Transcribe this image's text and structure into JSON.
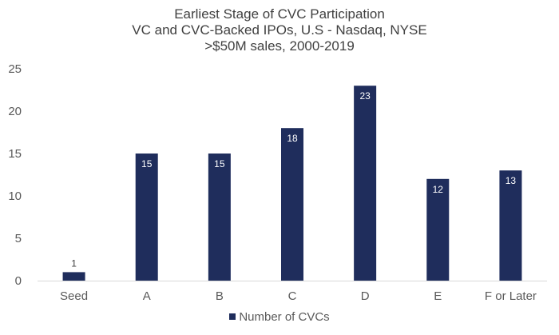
{
  "colors": {
    "bar": "#1f2d5c",
    "axis": "#d9d9d9",
    "text": "#595959",
    "title": "#404040"
  },
  "chart_data": {
    "type": "bar",
    "title": [
      "Earliest Stage of CVC Participation",
      "VC and CVC-Backed IPOs, U.S - Nasdaq, NYSE",
      ">$50M sales, 2000-2019"
    ],
    "categories": [
      "Seed",
      "A",
      "B",
      "C",
      "D",
      "E",
      "F or Later"
    ],
    "series": [
      {
        "name": "Number of CVCs",
        "values": [
          1,
          15,
          15,
          18,
          23,
          12,
          13
        ]
      }
    ],
    "data_labels": [
      "1",
      "15",
      "15",
      "18",
      "23",
      "12",
      "13"
    ],
    "yticks": [
      "0",
      "5",
      "10",
      "15",
      "20",
      "25"
    ],
    "ylim": [
      0,
      25
    ],
    "xlabel": "",
    "ylabel": "",
    "grid": false,
    "legend": "bottom-center"
  }
}
